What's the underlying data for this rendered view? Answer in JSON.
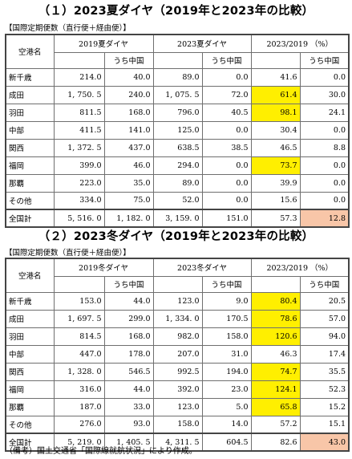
{
  "section1": {
    "title": "（１）2023夏ダイヤ（2019年と2023年の比較）",
    "caption": "【国際定期便数（直行便＋経由便）】",
    "header": {
      "airport": "空港名",
      "col2019": "2019夏ダイヤ",
      "col2023": "2023夏ダイヤ",
      "colRatio": "2023/2019 （%）",
      "china": "うち中国"
    },
    "rows": [
      {
        "name": "新千歳",
        "v2019": "214.0",
        "c2019": "40.0",
        "v2023": "89.0",
        "c2023": "0.0",
        "r": "41.6",
        "rc": "0.0"
      },
      {
        "name": "成田",
        "v2019": "1, 750. 5",
        "c2019": "240.0",
        "v2023": "1, 075. 5",
        "c2023": "72.0",
        "r": "61.4",
        "rc": "30.0"
      },
      {
        "name": "羽田",
        "v2019": "811.5",
        "c2019": "168.0",
        "v2023": "796.0",
        "c2023": "40.5",
        "r": "98.1",
        "rc": "24.1"
      },
      {
        "name": "中部",
        "v2019": "411.5",
        "c2019": "141.0",
        "v2023": "125.0",
        "c2023": "0.0",
        "r": "30.4",
        "rc": "0.0"
      },
      {
        "name": "関西",
        "v2019": "1, 372. 5",
        "c2019": "437.0",
        "v2023": "638.5",
        "c2023": "38.5",
        "r": "46.5",
        "rc": "8.8"
      },
      {
        "name": "福岡",
        "v2019": "399.0",
        "c2019": "46.0",
        "v2023": "294.0",
        "c2023": "0.0",
        "r": "73.7",
        "rc": "0.0"
      },
      {
        "name": "那覇",
        "v2019": "223.0",
        "c2019": "35.0",
        "v2023": "89.0",
        "c2023": "0.0",
        "r": "39.9",
        "rc": "0.0"
      },
      {
        "name": "その他",
        "v2019": "334.0",
        "c2019": "75.0",
        "v2023": "52.0",
        "c2023": "0.0",
        "r": "15.6",
        "rc": "0.0"
      }
    ],
    "total": {
      "name": "全国計",
      "v2019": "5, 516. 0",
      "c2019": "1, 182. 0",
      "v2023": "3, 159. 0",
      "c2023": "151.0",
      "r": "57.3",
      "rc": "12.8"
    }
  },
  "section2": {
    "title": "（２）2023冬ダイヤ（2019年と2023年の比較）",
    "caption": "【国際定期便数（直行便＋経由便）】",
    "header": {
      "airport": "空港名",
      "col2019": "2019冬ダイヤ",
      "col2023": "2023冬ダイヤ",
      "colRatio": "2023/2019 （%）",
      "china": "うち中国"
    },
    "rows": [
      {
        "name": "新千歳",
        "v2019": "153.0",
        "c2019": "44.0",
        "v2023": "123.0",
        "c2023": "9.0",
        "r": "80.4",
        "rc": "20.5"
      },
      {
        "name": "成田",
        "v2019": "1, 697. 5",
        "c2019": "299.0",
        "v2023": "1, 334. 0",
        "c2023": "170.5",
        "r": "78.6",
        "rc": "57.0"
      },
      {
        "name": "羽田",
        "v2019": "814.5",
        "c2019": "168.0",
        "v2023": "982.0",
        "c2023": "158.0",
        "r": "120.6",
        "rc": "94.0"
      },
      {
        "name": "中部",
        "v2019": "447.0",
        "c2019": "178.0",
        "v2023": "207.0",
        "c2023": "31.0",
        "r": "46.3",
        "rc": "17.4"
      },
      {
        "name": "関西",
        "v2019": "1, 328. 0",
        "c2019": "546.5",
        "v2023": "992.5",
        "c2023": "194.0",
        "r": "74.7",
        "rc": "35.5"
      },
      {
        "name": "福岡",
        "v2019": "316.0",
        "c2019": "44.0",
        "v2023": "392.0",
        "c2023": "23.0",
        "r": "124.1",
        "rc": "52.3"
      },
      {
        "name": "那覇",
        "v2019": "187.0",
        "c2019": "33.0",
        "v2023": "123.0",
        "c2023": "5.0",
        "r": "65.8",
        "rc": "15.2"
      },
      {
        "name": "その他",
        "v2019": "276.0",
        "c2019": "93.0",
        "v2023": "158.0",
        "c2023": "14.0",
        "r": "57.2",
        "rc": "15.1"
      }
    ],
    "total": {
      "name": "全国計",
      "v2019": "5, 219. 0",
      "c2019": "1, 405. 5",
      "v2023": "4, 311. 5",
      "c2023": "604.5",
      "r": "82.6",
      "rc": "43.0"
    }
  },
  "note": "（備考）国土交通省「国際線就航状況」により作成。",
  "colors": {
    "highlight_yellow": "#ffef00",
    "highlight_orange": "#f8c6a8"
  }
}
